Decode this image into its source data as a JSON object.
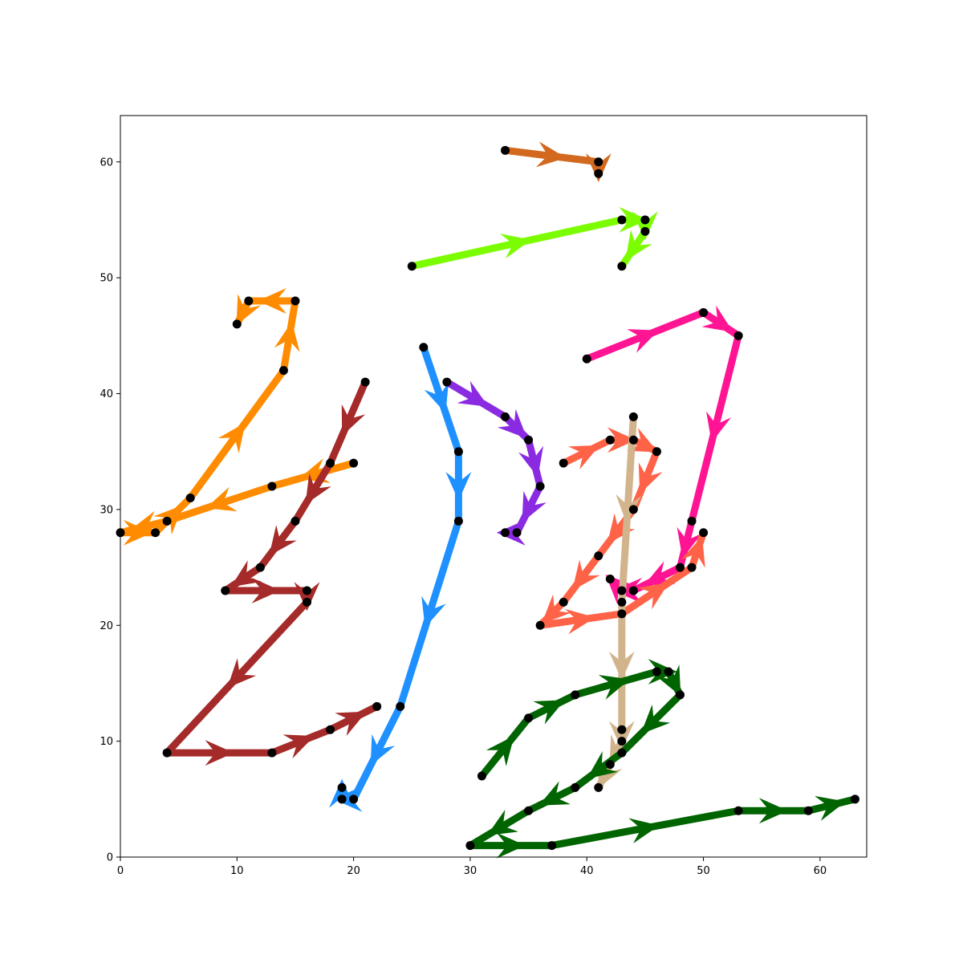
{
  "chart_data": {
    "type": "line",
    "title": "",
    "xlabel": "",
    "ylabel": "",
    "xlim": [
      0,
      64
    ],
    "ylim": [
      0,
      64
    ],
    "xticks": [
      0,
      10,
      20,
      30,
      40,
      50,
      60
    ],
    "yticks": [
      0,
      10,
      20,
      30,
      40,
      50,
      60
    ],
    "grid": false,
    "legend": "none",
    "marker_color": "#000000",
    "series": [
      {
        "color": "#d2691e",
        "x": [
          33,
          41,
          41
        ],
        "y": [
          61,
          60,
          59
        ]
      },
      {
        "color": "#7cfc00",
        "x": [
          25,
          43,
          45,
          45,
          43
        ],
        "y": [
          51,
          55,
          55,
          54,
          51
        ]
      },
      {
        "color": "#ff8c00",
        "x": [
          20,
          13,
          4,
          0,
          3,
          6,
          14,
          15,
          11,
          10
        ],
        "y": [
          34,
          32,
          29,
          28,
          28,
          31,
          42,
          48,
          48,
          46
        ]
      },
      {
        "color": "#a52a2a",
        "x": [
          21,
          18,
          15,
          12,
          9,
          16,
          16,
          4,
          13,
          18,
          22
        ],
        "y": [
          41,
          34,
          29,
          25,
          23,
          23,
          22,
          9,
          9,
          11,
          13
        ]
      },
      {
        "color": "#1e90ff",
        "x": [
          26,
          29,
          29,
          24,
          20,
          19,
          19
        ],
        "y": [
          44,
          35,
          29,
          13,
          5,
          5,
          6
        ]
      },
      {
        "color": "#8a2be2",
        "x": [
          28,
          33,
          35,
          36,
          34,
          33
        ],
        "y": [
          41,
          38,
          36,
          32,
          28,
          28
        ]
      },
      {
        "color": "#ff1493",
        "x": [
          40,
          50,
          53,
          49,
          48,
          44,
          43,
          42
        ],
        "y": [
          43,
          47,
          45,
          29,
          25,
          23,
          23,
          24
        ]
      },
      {
        "color": "#ff6347",
        "x": [
          38,
          42,
          44,
          46,
          44,
          41,
          38,
          36,
          43,
          49,
          50
        ],
        "y": [
          34,
          36,
          36,
          35,
          30,
          26,
          22,
          20,
          21,
          25,
          28
        ]
      },
      {
        "color": "#d2b48c",
        "x": [
          44,
          43,
          43,
          43,
          42,
          41
        ],
        "y": [
          38,
          22,
          11,
          10,
          8,
          6
        ]
      },
      {
        "color": "#006400",
        "x": [
          31,
          35,
          39,
          46,
          47,
          48,
          43,
          39,
          35,
          30,
          37,
          53,
          59,
          63
        ],
        "y": [
          7,
          12,
          14,
          16,
          16,
          14,
          9,
          6,
          4,
          1,
          1,
          4,
          4,
          5
        ]
      }
    ]
  }
}
